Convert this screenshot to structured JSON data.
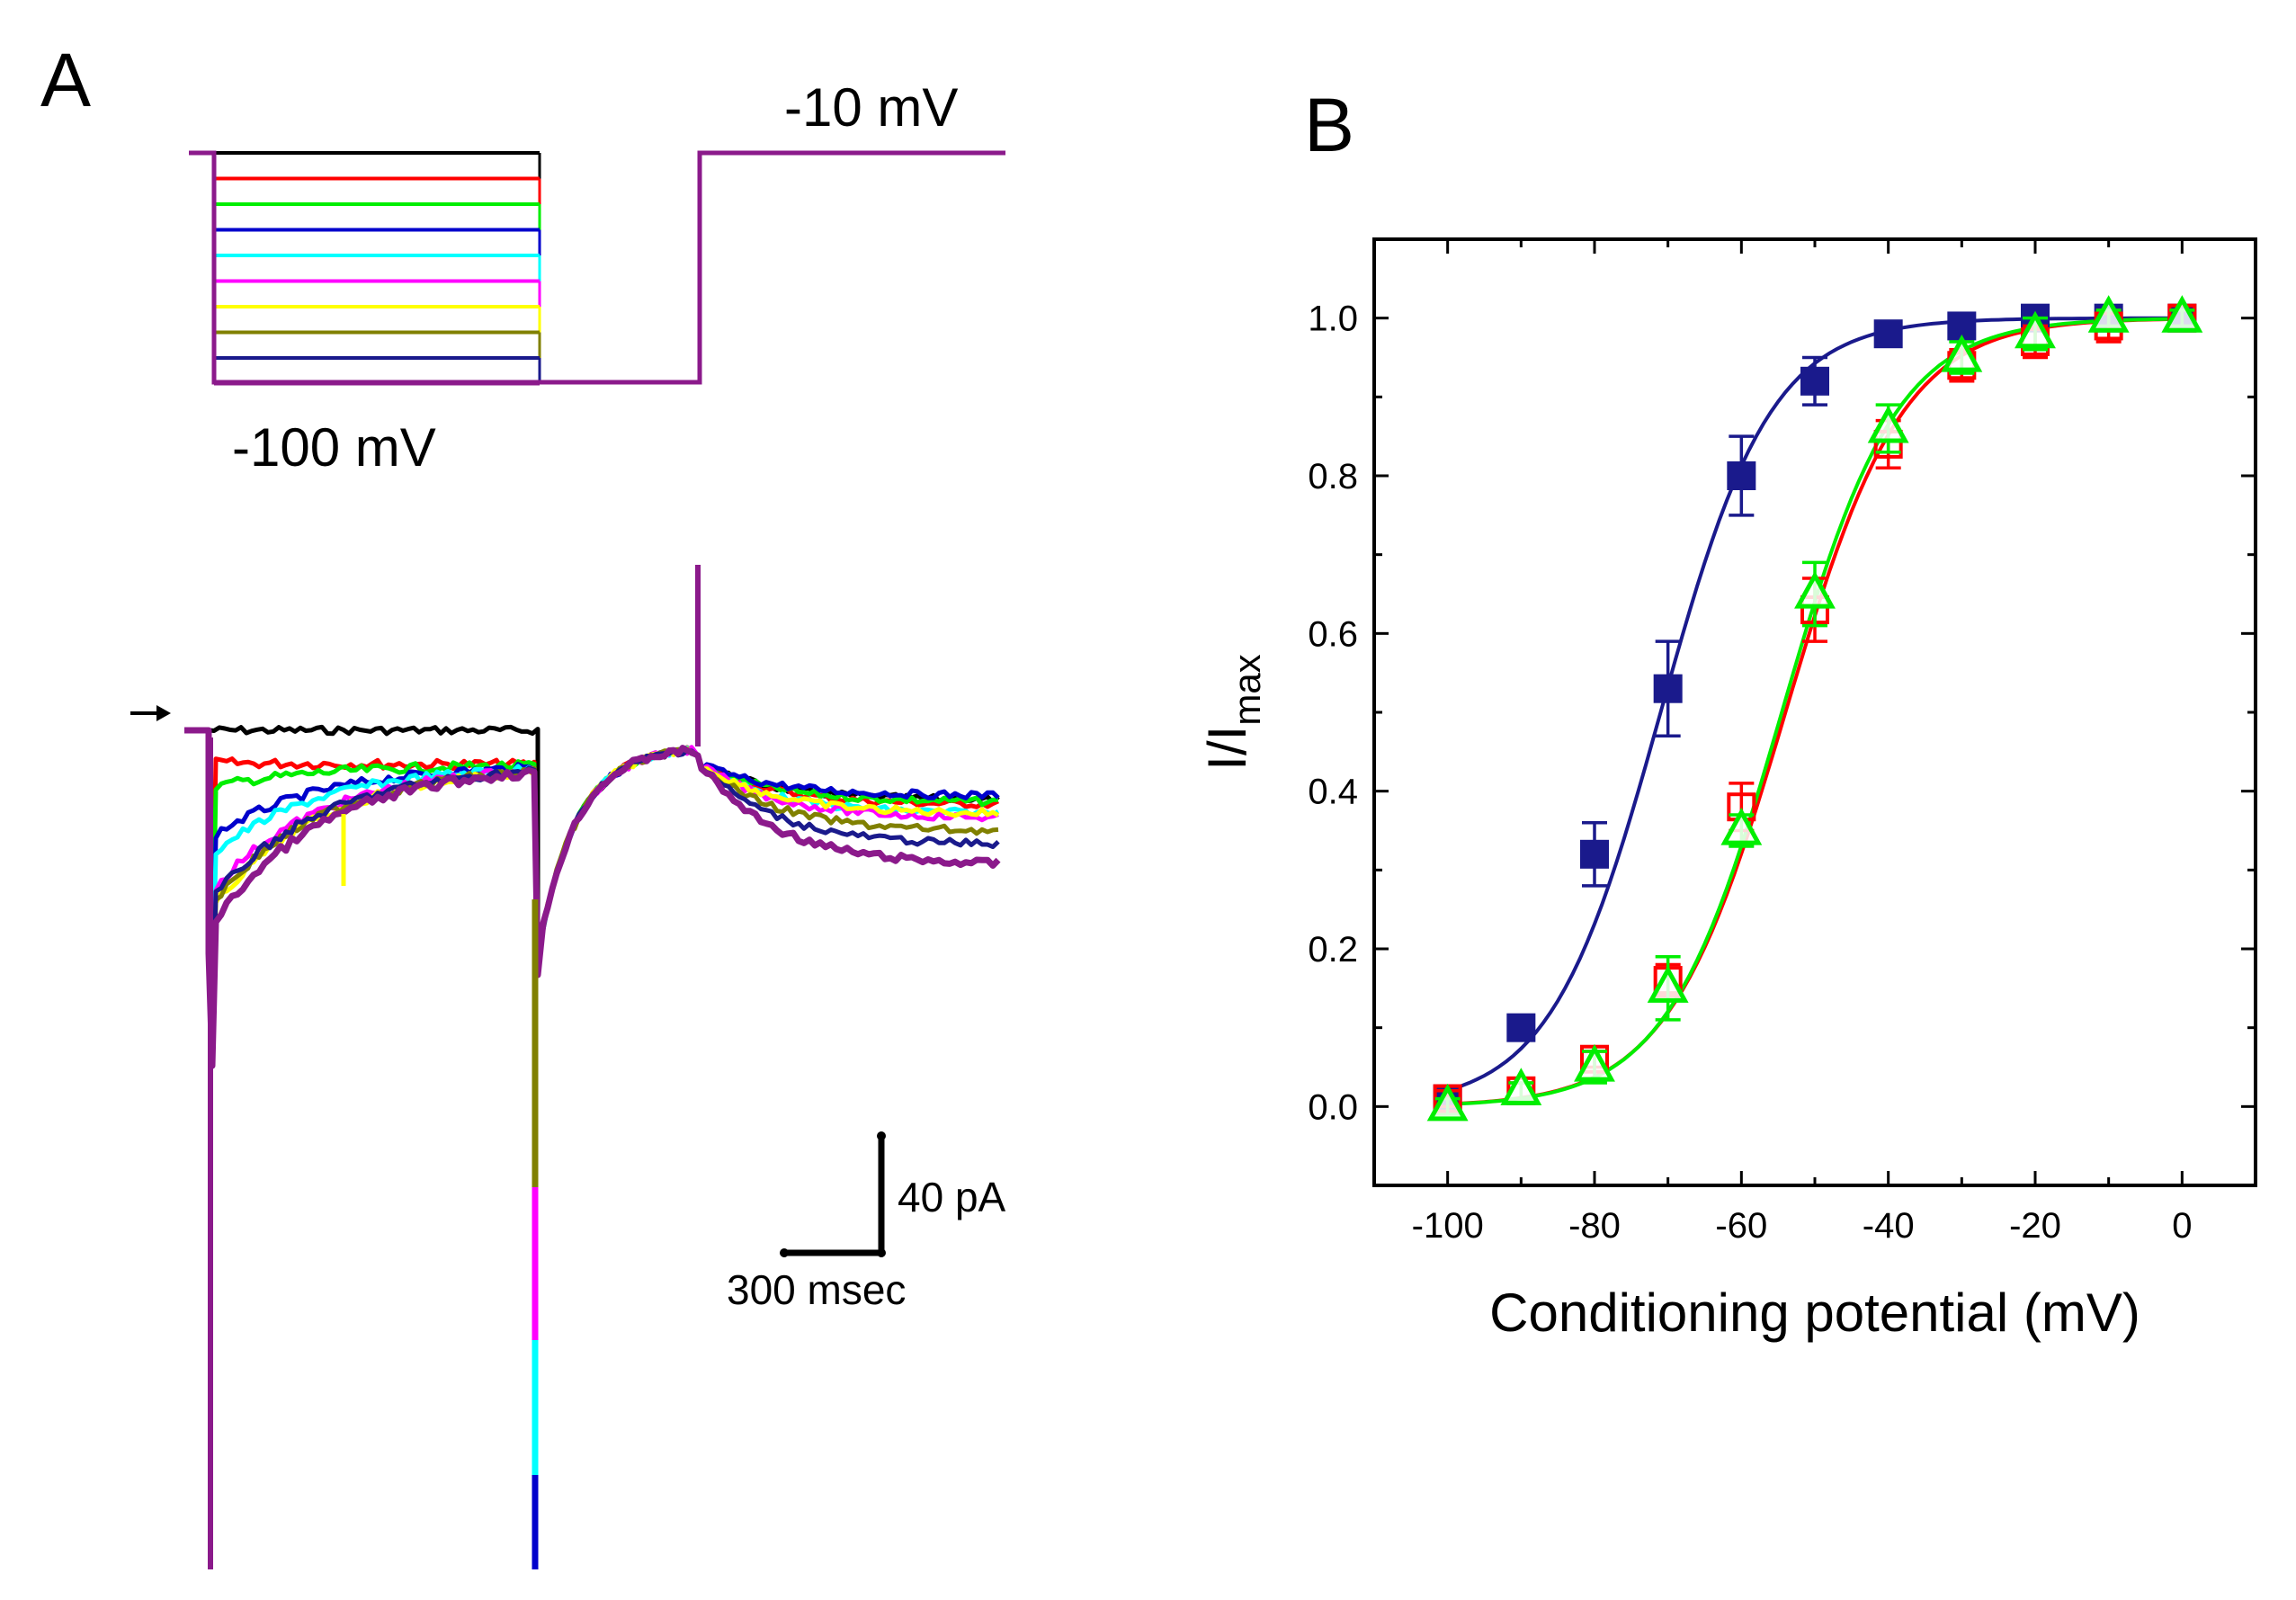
{
  "panel_a": {
    "letter": "A",
    "voltage_high_label": "-10 mV",
    "voltage_low_label": "-100 mV",
    "scale_current_label": "40 pA",
    "scale_time_label": "300 msec",
    "arrow_icon": "arrow-right-icon",
    "trace_colors": [
      "#000000",
      "#ff0000",
      "#00ee00",
      "#0000cc",
      "#00ffff",
      "#ff00ff",
      "#ffff00",
      "#808000",
      "#1a1a8c",
      "#8b1a8b"
    ]
  },
  "panel_b": {
    "letter": "B"
  },
  "chart_data": {
    "type": "scatter",
    "title": "",
    "xlabel": "Conditioning potential (mV)",
    "ylabel_main": "I/I",
    "ylabel_sub": "max",
    "xlim": [
      -110,
      10
    ],
    "ylim": [
      -0.1,
      1.1
    ],
    "xticks": [
      -100,
      -80,
      -60,
      -40,
      -20,
      0
    ],
    "xtick_labels": [
      "-100",
      "-80",
      "-60",
      "-40",
      "-20",
      "0"
    ],
    "yticks": [
      0.0,
      0.2,
      0.4,
      0.6,
      0.8,
      1.0
    ],
    "ytick_labels": [
      "0.0",
      "0.2",
      "0.4",
      "0.6",
      "0.8",
      "1.0"
    ],
    "series": [
      {
        "name": "navy-squares",
        "marker": "filled-square",
        "color": "#1a1a8c",
        "x": [
          -100,
          -90,
          -80,
          -70,
          -60,
          -50,
          -40,
          -30,
          -20,
          -10,
          0
        ],
        "y": [
          0.01,
          0.1,
          0.32,
          0.53,
          0.8,
          0.92,
          0.98,
          0.99,
          1.0,
          1.0,
          1.0
        ],
        "err": [
          0.01,
          0.01,
          0.04,
          0.06,
          0.05,
          0.03,
          0.01,
          0.01,
          0.01,
          0.01,
          0.01
        ],
        "fit": {
          "v_half": -71,
          "k": 7.5
        }
      },
      {
        "name": "red-open-squares",
        "marker": "open-square",
        "color": "#ff0000",
        "x": [
          -100,
          -90,
          -80,
          -70,
          -60,
          -50,
          -40,
          -30,
          -20,
          -10,
          0
        ],
        "y": [
          0.01,
          0.02,
          0.06,
          0.16,
          0.38,
          0.63,
          0.84,
          0.94,
          0.97,
          0.99,
          1.0
        ],
        "err": [
          0.01,
          0.01,
          0.01,
          0.02,
          0.03,
          0.04,
          0.03,
          0.02,
          0.02,
          0.02,
          0.01
        ],
        "fit": {
          "v_half": -54,
          "k": 8.0
        }
      },
      {
        "name": "green-open-triangles",
        "marker": "open-triangle",
        "color": "#00ee00",
        "x": [
          -100,
          -90,
          -80,
          -70,
          -60,
          -50,
          -40,
          -30,
          -20,
          -10,
          0
        ],
        "y": [
          0.0,
          0.02,
          0.05,
          0.15,
          0.35,
          0.65,
          0.86,
          0.95,
          0.98,
          1.0,
          1.0
        ],
        "err": [
          0.01,
          0.01,
          0.02,
          0.04,
          0.02,
          0.04,
          0.03,
          0.02,
          0.02,
          0.01,
          0.01
        ],
        "fit": {
          "v_half": -54.5,
          "k": 7.8
        }
      }
    ]
  }
}
